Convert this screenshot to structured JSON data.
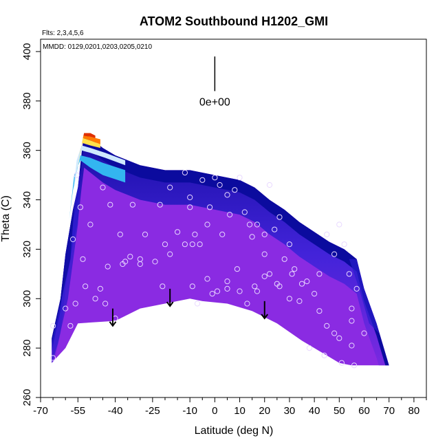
{
  "chart_data": {
    "type": "heatmap",
    "title": "ATOM2 Southbound H1202_GMI",
    "flights_label": "Flts: 2,3,4,5,6",
    "dates_label": "MMDD: 0129,0201,0203,0205,0210",
    "xlabel": "Latitude (deg N)",
    "ylabel": "Theta (C)",
    "xlim": [
      -70,
      85
    ],
    "ylim": [
      260,
      405
    ],
    "x_ticks": [
      -70,
      -55,
      -40,
      -25,
      -10,
      0,
      10,
      20,
      30,
      40,
      50,
      60,
      70,
      80
    ],
    "x_minor_ticks": [
      -65,
      -60,
      -50,
      -45,
      -35,
      -30,
      -20,
      -15,
      -5,
      5,
      15,
      25,
      35,
      45,
      55,
      65,
      75,
      85
    ],
    "y_ticks": [
      260,
      280,
      300,
      320,
      340,
      360,
      380,
      400
    ],
    "scale_label": "0e+00",
    "scale_bar": {
      "x": 0,
      "y_top": 398,
      "y_bottom": 384
    },
    "colors": {
      "field": "#8a2be2",
      "field_edge": "#2a1ccc",
      "ridge": "#0b0b9e",
      "cyan": "#33b5f0",
      "light": "#cfe9ff",
      "yellow": "#ffe14a",
      "orange": "#ff7a00",
      "red": "#e03000",
      "marker": "#e8d8ff"
    },
    "domain_lower": [
      [
        -65.5,
        274
      ],
      [
        -60,
        280
      ],
      [
        -55,
        290
      ],
      [
        -40,
        291
      ],
      [
        -30,
        296
      ],
      [
        -10,
        300
      ],
      [
        -5,
        299
      ],
      [
        5,
        298
      ],
      [
        15,
        295
      ],
      [
        25,
        290
      ],
      [
        35,
        283
      ],
      [
        45,
        277
      ],
      [
        50,
        274
      ],
      [
        55,
        273
      ],
      [
        70,
        273
      ]
    ],
    "domain_upper": [
      [
        -65.5,
        274
      ],
      [
        -65.5,
        284
      ],
      [
        -62,
        300
      ],
      [
        -60,
        318
      ],
      [
        -57,
        336
      ],
      [
        -55,
        345
      ],
      [
        -53.5,
        359
      ],
      [
        -52.5,
        367
      ],
      [
        -50,
        365
      ],
      [
        -45,
        361
      ],
      [
        -40,
        358
      ],
      [
        -30,
        354
      ],
      [
        -20,
        352
      ],
      [
        -10,
        352
      ],
      [
        -5,
        351
      ],
      [
        0,
        350
      ],
      [
        10,
        348
      ],
      [
        16,
        345
      ],
      [
        22,
        340
      ],
      [
        28,
        336
      ],
      [
        34,
        331
      ],
      [
        40,
        327
      ],
      [
        46,
        323
      ],
      [
        52,
        320
      ],
      [
        57,
        316
      ],
      [
        60,
        304
      ],
      [
        65,
        290
      ],
      [
        70,
        273
      ]
    ],
    "arrows": [
      {
        "x": -41,
        "y_top": 296,
        "y_bottom": 289
      },
      {
        "x": -18,
        "y_top": 304,
        "y_bottom": 297
      },
      {
        "x": 20,
        "y_top": 299,
        "y_bottom": 292
      }
    ],
    "observations": [
      [
        -65,
        289
      ],
      [
        -57,
        324
      ],
      [
        -55.5,
        350
      ],
      [
        -54,
        337
      ],
      [
        -53,
        316
      ],
      [
        -50,
        330
      ],
      [
        -46,
        304
      ],
      [
        -45,
        345
      ],
      [
        -42,
        338
      ],
      [
        -38,
        326
      ],
      [
        -33,
        338
      ],
      [
        -28,
        326
      ],
      [
        -22,
        338
      ],
      [
        -20,
        322
      ],
      [
        -18,
        345
      ],
      [
        -15,
        327
      ],
      [
        -12,
        351
      ],
      [
        -10,
        341
      ],
      [
        -10,
        337
      ],
      [
        -8,
        326
      ],
      [
        -5,
        348
      ],
      [
        -3,
        330
      ],
      [
        -2,
        337
      ],
      [
        0,
        349
      ],
      [
        2,
        346
      ],
      [
        3,
        326
      ],
      [
        5,
        342
      ],
      [
        6,
        334
      ],
      [
        8,
        344
      ],
      [
        10,
        349
      ],
      [
        12,
        335
      ],
      [
        14,
        330
      ],
      [
        15,
        325
      ],
      [
        17,
        330
      ],
      [
        20,
        326
      ],
      [
        22,
        346
      ],
      [
        24,
        328
      ],
      [
        26,
        333
      ],
      [
        28,
        316
      ],
      [
        30,
        322
      ],
      [
        32,
        312
      ],
      [
        35,
        306
      ],
      [
        40,
        302
      ],
      [
        42,
        310
      ],
      [
        45,
        326
      ],
      [
        48,
        318
      ],
      [
        50,
        330
      ],
      [
        52,
        322
      ],
      [
        54,
        310
      ],
      [
        55,
        296
      ],
      [
        55,
        291
      ],
      [
        57,
        304
      ],
      [
        -43,
        313
      ],
      [
        -36,
        315
      ],
      [
        -30,
        314
      ],
      [
        -21,
        305
      ],
      [
        -9,
        305
      ],
      [
        -7,
        298
      ],
      [
        -1,
        302
      ],
      [
        5,
        304
      ],
      [
        9,
        312
      ],
      [
        13,
        298
      ],
      [
        17,
        303
      ],
      [
        20,
        318
      ],
      [
        22,
        310
      ],
      [
        26,
        305
      ],
      [
        31,
        310
      ],
      [
        34,
        299
      ],
      [
        37,
        307
      ],
      [
        42,
        295
      ],
      [
        45,
        289
      ],
      [
        48,
        286
      ],
      [
        50,
        284
      ],
      [
        55,
        281
      ],
      [
        60,
        286
      ],
      [
        -65,
        276
      ],
      [
        -60,
        296
      ],
      [
        -58,
        289
      ],
      [
        -56,
        298
      ],
      [
        -52,
        305
      ],
      [
        -48,
        300
      ],
      [
        -44,
        298
      ],
      [
        -40,
        292
      ],
      [
        -37,
        314
      ],
      [
        -34,
        317
      ],
      [
        -30,
        316
      ],
      [
        -24,
        315
      ],
      [
        -18,
        318
      ],
      [
        -12,
        322
      ],
      [
        -9,
        322
      ],
      [
        -6,
        322
      ],
      [
        -3,
        308
      ],
      [
        1,
        303
      ],
      [
        5,
        307
      ],
      [
        10,
        303
      ],
      [
        16,
        305
      ],
      [
        20,
        309
      ],
      [
        25,
        306
      ],
      [
        30,
        300
      ],
      [
        38,
        280
      ],
      [
        44,
        277
      ],
      [
        51,
        274
      ],
      [
        56,
        273
      ]
    ]
  }
}
